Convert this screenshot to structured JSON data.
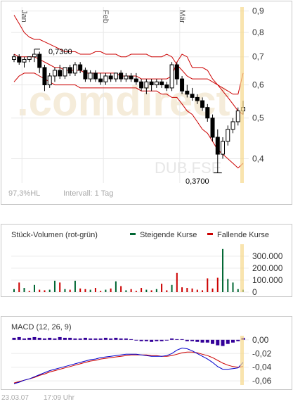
{
  "chart_data": [
    {
      "type": "candlestick",
      "scale": "log",
      "ylim": [
        0.35,
        0.92
      ],
      "yticks": [
        "0,9",
        "0,8",
        "0,7",
        "0,6",
        "0,5",
        "0,4"
      ],
      "ytick_values": [
        0.9,
        0.8,
        0.7,
        0.6,
        0.5,
        0.4
      ],
      "month_labels": [
        "Jan",
        "Feb",
        "Mär"
      ],
      "high_label": "0,7300",
      "low_label": "0,3700",
      "high_value": 0.73,
      "low_value": 0.37,
      "watermark_text": ".comdirect",
      "ticker": "DUB.FSE",
      "footer_left": "97,3%HL",
      "footer_right": "Intervall: 1 Tag",
      "bollinger_color": "#cc0000",
      "candles": [
        [
          0.69,
          0.71,
          0.68,
          0.7
        ],
        [
          0.7,
          0.71,
          0.67,
          0.68
        ],
        [
          0.68,
          0.7,
          0.66,
          0.69
        ],
        [
          0.69,
          0.7,
          0.68,
          0.7
        ],
        [
          0.7,
          0.73,
          0.68,
          0.71
        ],
        [
          0.71,
          0.72,
          0.64,
          0.66
        ],
        [
          0.66,
          0.67,
          0.58,
          0.6
        ],
        [
          0.6,
          0.64,
          0.59,
          0.63
        ],
        [
          0.63,
          0.66,
          0.61,
          0.65
        ],
        [
          0.65,
          0.67,
          0.62,
          0.63
        ],
        [
          0.63,
          0.66,
          0.62,
          0.66
        ],
        [
          0.66,
          0.67,
          0.63,
          0.64
        ],
        [
          0.64,
          0.68,
          0.63,
          0.67
        ],
        [
          0.67,
          0.68,
          0.64,
          0.65
        ],
        [
          0.65,
          0.66,
          0.61,
          0.62
        ],
        [
          0.62,
          0.65,
          0.61,
          0.64
        ],
        [
          0.64,
          0.65,
          0.61,
          0.62
        ],
        [
          0.62,
          0.64,
          0.6,
          0.61
        ],
        [
          0.61,
          0.64,
          0.6,
          0.63
        ],
        [
          0.63,
          0.64,
          0.61,
          0.62
        ],
        [
          0.62,
          0.64,
          0.61,
          0.64
        ],
        [
          0.64,
          0.65,
          0.61,
          0.62
        ],
        [
          0.62,
          0.64,
          0.61,
          0.63
        ],
        [
          0.63,
          0.64,
          0.61,
          0.62
        ],
        [
          0.62,
          0.64,
          0.6,
          0.61
        ],
        [
          0.61,
          0.62,
          0.58,
          0.59
        ],
        [
          0.59,
          0.62,
          0.57,
          0.61
        ],
        [
          0.61,
          0.62,
          0.58,
          0.6
        ],
        [
          0.6,
          0.62,
          0.59,
          0.61
        ],
        [
          0.61,
          0.62,
          0.59,
          0.6
        ],
        [
          0.6,
          0.61,
          0.58,
          0.59
        ],
        [
          0.59,
          0.68,
          0.58,
          0.67
        ],
        [
          0.67,
          0.68,
          0.6,
          0.62
        ],
        [
          0.62,
          0.63,
          0.57,
          0.58
        ],
        [
          0.58,
          0.6,
          0.56,
          0.57
        ],
        [
          0.57,
          0.59,
          0.55,
          0.56
        ],
        [
          0.56,
          0.57,
          0.54,
          0.55
        ],
        [
          0.55,
          0.56,
          0.52,
          0.53
        ],
        [
          0.53,
          0.54,
          0.49,
          0.5
        ],
        [
          0.5,
          0.51,
          0.44,
          0.45
        ],
        [
          0.45,
          0.47,
          0.37,
          0.41
        ],
        [
          0.41,
          0.45,
          0.4,
          0.44
        ],
        [
          0.44,
          0.48,
          0.43,
          0.47
        ],
        [
          0.47,
          0.5,
          0.46,
          0.49
        ],
        [
          0.49,
          0.53,
          0.48,
          0.52
        ],
        [
          0.52,
          0.55,
          0.51,
          0.53
        ]
      ],
      "bb_upper": [
        0.88,
        0.84,
        0.8,
        0.78,
        0.77,
        0.77,
        0.76,
        0.75,
        0.74,
        0.73,
        0.72,
        0.72,
        0.72,
        0.71,
        0.71,
        0.71,
        0.72,
        0.72,
        0.71,
        0.71,
        0.71,
        0.7,
        0.7,
        0.71,
        0.71,
        0.71,
        0.71,
        0.7,
        0.7,
        0.7,
        0.71,
        0.7,
        0.67,
        0.65,
        0.63,
        0.62,
        0.62,
        0.62,
        0.62,
        0.61,
        0.6,
        0.58,
        0.56,
        0.54,
        0.52,
        0.51
      ],
      "bb_middle": [
        0.71,
        0.7,
        0.7,
        0.7,
        0.7,
        0.69,
        0.68,
        0.67,
        0.66,
        0.66,
        0.65,
        0.65,
        0.65,
        0.65,
        0.64,
        0.64,
        0.64,
        0.64,
        0.64,
        0.64,
        0.64,
        0.63,
        0.63,
        0.63,
        0.63,
        0.62,
        0.62,
        0.62,
        0.62,
        0.62,
        0.62,
        0.63,
        0.68,
        0.71,
        0.7,
        0.66,
        0.66,
        0.66,
        0.65,
        0.62,
        0.6,
        0.59,
        0.58,
        0.57,
        0.57,
        0.64
      ],
      "bb_lower": [
        0.61,
        0.63,
        0.64,
        0.64,
        0.64,
        0.63,
        0.62,
        0.61,
        0.6,
        0.6,
        0.6,
        0.6,
        0.6,
        0.59,
        0.59,
        0.59,
        0.59,
        0.59,
        0.59,
        0.59,
        0.59,
        0.59,
        0.59,
        0.59,
        0.59,
        0.58,
        0.58,
        0.58,
        0.58,
        0.57,
        0.57,
        0.56,
        0.56,
        0.54,
        0.52,
        0.51,
        0.49,
        0.47,
        0.46,
        0.44,
        0.42,
        0.41,
        0.4,
        0.39,
        0.38,
        0.39
      ]
    },
    {
      "type": "bar",
      "title": "Stück-Volumen (rot-grün)",
      "legend_up": "Steigende Kurse",
      "legend_down": "Fallende Kurse",
      "up_color": "#006633",
      "down_color": "#cc0000",
      "yticks": [
        "300.000",
        "200.000",
        "100.000",
        "0"
      ],
      "ytick_values": [
        300000,
        200000,
        100000,
        0
      ],
      "ylim": [
        0,
        400000
      ],
      "volumes": [
        25000,
        80000,
        35000,
        10000,
        60000,
        20000,
        15000,
        20000,
        95000,
        80000,
        25000,
        20000,
        95000,
        30000,
        25000,
        20000,
        35000,
        10000,
        20000,
        30000,
        90000,
        50000,
        15000,
        25000,
        10000,
        35000,
        20000,
        15000,
        25000,
        70000,
        15000,
        60000,
        160000,
        40000,
        35000,
        30000,
        20000,
        15000,
        115000,
        30000,
        120000,
        360000,
        110000,
        80000,
        25000,
        20000
      ],
      "up": [
        true,
        false,
        true,
        false,
        true,
        false,
        false,
        true,
        true,
        false,
        true,
        false,
        true,
        false,
        false,
        true,
        false,
        false,
        true,
        false,
        true,
        false,
        true,
        false,
        false,
        false,
        true,
        false,
        true,
        false,
        false,
        true,
        false,
        false,
        false,
        false,
        false,
        false,
        false,
        false,
        false,
        true,
        true,
        true,
        true,
        true
      ]
    },
    {
      "type": "line",
      "title": "MACD (12, 26, 9)",
      "yticks": [
        "0,00",
        "-0,02",
        "-0,04",
        "-0,06"
      ],
      "ytick_values": [
        0,
        -0.02,
        -0.04,
        -0.06
      ],
      "ylim": [
        -0.066,
        0.006
      ],
      "histogram_color": "#330099",
      "macd_color": "#0000cc",
      "signal_color": "#cc0000",
      "histogram": [
        0.003,
        0.004,
        0.002,
        0.003,
        0.004,
        0.003,
        0.002,
        0.003,
        0.002,
        0.004,
        0.003,
        0.003,
        0.002,
        0.002,
        0.003,
        0.002,
        0.002,
        0.002,
        0.003,
        0.002,
        0.003,
        0.002,
        0.002,
        0.001,
        -0.001,
        -0.002,
        -0.002,
        -0.003,
        -0.002,
        -0.002,
        -0.001,
        0.002,
        0.001,
        0.001,
        -0.002,
        -0.002,
        -0.003,
        -0.004,
        -0.004,
        -0.006,
        -0.008,
        -0.009,
        -0.006,
        -0.004,
        -0.002,
        0.003
      ],
      "macd": [
        -0.064,
        -0.062,
        -0.059,
        -0.057,
        -0.054,
        -0.051,
        -0.048,
        -0.045,
        -0.043,
        -0.041,
        -0.039,
        -0.037,
        -0.035,
        -0.033,
        -0.031,
        -0.029,
        -0.028,
        -0.026,
        -0.025,
        -0.024,
        -0.023,
        -0.022,
        -0.021,
        -0.021,
        -0.021,
        -0.022,
        -0.023,
        -0.024,
        -0.024,
        -0.024,
        -0.023,
        -0.02,
        -0.015,
        -0.012,
        -0.013,
        -0.016,
        -0.02,
        -0.024,
        -0.028,
        -0.033,
        -0.039,
        -0.043,
        -0.043,
        -0.042,
        -0.041,
        -0.033
      ],
      "signal": [
        -0.063,
        -0.061,
        -0.059,
        -0.057,
        -0.055,
        -0.052,
        -0.05,
        -0.047,
        -0.045,
        -0.043,
        -0.041,
        -0.039,
        -0.037,
        -0.035,
        -0.033,
        -0.031,
        -0.03,
        -0.028,
        -0.027,
        -0.026,
        -0.025,
        -0.024,
        -0.023,
        -0.022,
        -0.022,
        -0.022,
        -0.022,
        -0.023,
        -0.023,
        -0.024,
        -0.024,
        -0.023,
        -0.021,
        -0.019,
        -0.018,
        -0.018,
        -0.019,
        -0.021,
        -0.023,
        -0.026,
        -0.03,
        -0.034,
        -0.037,
        -0.039,
        -0.04,
        -0.039
      ]
    }
  ],
  "footer": {
    "date": "23.03.07",
    "time": "17:09 Uhr"
  }
}
